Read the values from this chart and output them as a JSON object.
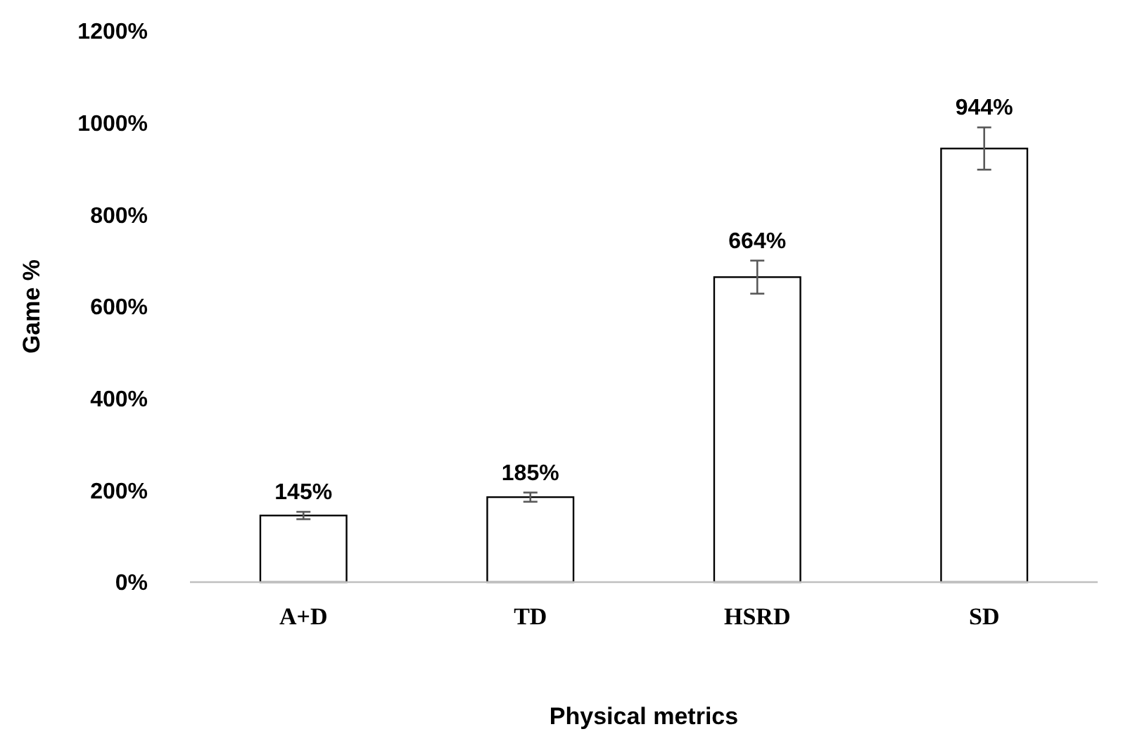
{
  "chart_data": {
    "type": "bar",
    "xlabel": "Physical metrics",
    "ylabel": "Game %",
    "categories": [
      "A+D",
      "TD",
      "HSRD",
      "SD"
    ],
    "values": [
      145,
      185,
      664,
      944
    ],
    "value_labels": [
      "145%",
      "185%",
      "664%",
      "944%"
    ],
    "errors": [
      8,
      10,
      36,
      46
    ],
    "color": "#ffffff",
    "ylim": [
      0,
      1200
    ],
    "yticks": [
      {
        "value": 0,
        "label": "0%"
      },
      {
        "value": 200,
        "label": "200%"
      },
      {
        "value": 400,
        "label": "400%"
      },
      {
        "value": 600,
        "label": "600%"
      },
      {
        "value": 800,
        "label": "800%"
      },
      {
        "value": 1000,
        "label": "1000%"
      },
      {
        "value": 1200,
        "label": "1200%"
      }
    ],
    "grid": false
  }
}
